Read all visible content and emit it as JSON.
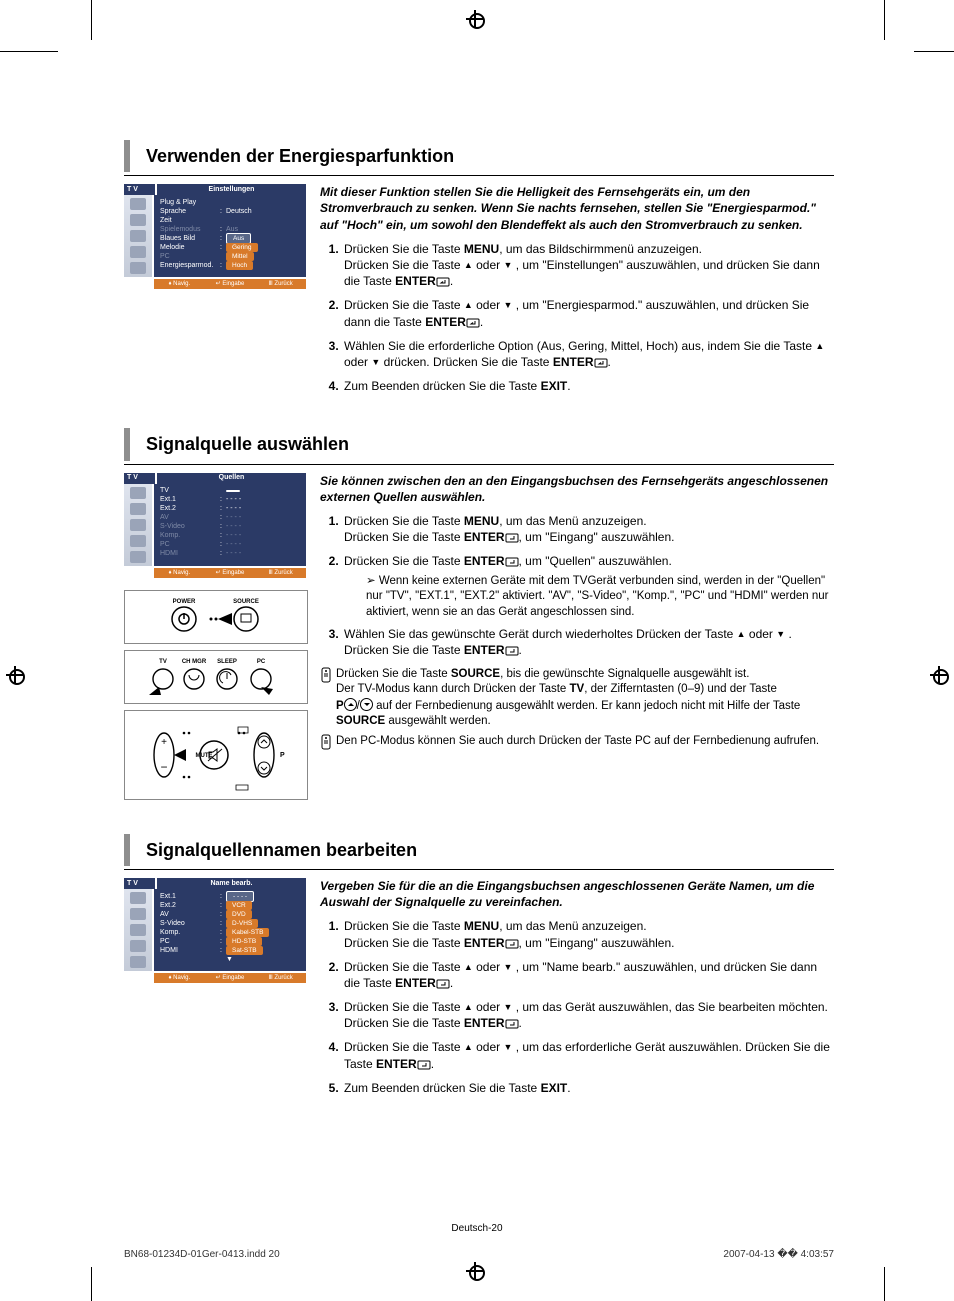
{
  "colors": {
    "accent_bar": "#8e8e8e",
    "osd_header": "#2b3a66",
    "osd_orange": "#d87a2a",
    "osd_icon_bg": "#9aa4b8",
    "osd_dim": "#7f8aa6"
  },
  "section1": {
    "title": "Verwenden der Energiesparfunktion",
    "intro": "Mit dieser Funktion stellen Sie die Helligkeit des Fernsehgeräts ein, um den Stromverbrauch zu senken. Wenn Sie nachts fernsehen, stellen Sie \"Energiesparmod.\" auf \"Hoch\" ein, um sowohl den Blendeffekt als auch den Stromverbrauch zu senken.",
    "steps": {
      "s1a": "Drücken Sie die Taste ",
      "s1b": ", um das Bildschirmmenü anzuzeigen.",
      "s1c": "Drücken Sie die Taste ",
      "s1d": " oder ",
      "s1e": " , um \"Einstellungen\" auszuwählen, und drücken Sie dann die Taste ",
      "s1f": ".",
      "s2a": "Drücken Sie die Taste ",
      "s2b": " oder ",
      "s2c": " , um \"Energiesparmod.\" auszuwählen, und drücken Sie dann die Taste ",
      "s2d": ".",
      "s3a": "Wählen Sie die erforderliche Option (Aus, Gering, Mittel, Hoch) aus, indem Sie die Taste ",
      "s3b": " oder ",
      "s3c": "  drücken. Drücken Sie die Taste ",
      "s3d": ".",
      "s4a": "Zum Beenden drücken Sie die Taste ",
      "s4b": "."
    },
    "keys": {
      "menu": "MENU",
      "enter": "ENTER",
      "exit": "EXIT"
    },
    "osd": {
      "tv": "T V",
      "header": "Einstellungen",
      "rows": [
        {
          "label": "Plug & Play",
          "val": ""
        },
        {
          "label": "Sprache",
          "val": "Deutsch",
          "colon": ":"
        },
        {
          "label": "Zeit",
          "val": ""
        },
        {
          "label": "Spielemodus",
          "val": "Aus",
          "colon": ":",
          "dim": true
        },
        {
          "label": "Blaues Bild",
          "val": "Aus",
          "colon": ":",
          "pill": "sel"
        },
        {
          "label": "Melodie",
          "val": "Gering",
          "colon": ":",
          "pill": true
        },
        {
          "label": "PC",
          "val": "Mittel",
          "pill": true,
          "dim": true
        },
        {
          "label": "Energiesparmod.",
          "val": "Hoch",
          "colon": ":",
          "pill": true
        }
      ],
      "footer": {
        "nav": "Navig.",
        "enter": "Eingabe",
        "back": "Zurück"
      }
    }
  },
  "section2": {
    "title": "Signalquelle auswählen",
    "intro": "Sie können zwischen den an den Eingangsbuchsen des Fernsehgeräts angeschlossenen externen Quellen auswählen.",
    "steps": {
      "s1a": "Drücken Sie die Taste ",
      "s1b": ", um das Menü anzuzeigen.",
      "s1c": "Drücken Sie die Taste ",
      "s1d": ", um \"Eingang\" auszuwählen.",
      "s2a": "Drücken Sie die Taste ",
      "s2b": ", um \"Quellen\" auszuwählen.",
      "sub": "Wenn keine externen Geräte mit dem TVGerät verbunden sind, werden in der \"Quellen\" nur \"TV\", \"EXT.1\", \"EXT.2\" aktiviert. \"AV\", \"S-Video\", \"Komp.\", \"PC\" und \"HDMI\" werden nur aktiviert, wenn sie an das Gerät angeschlossen sind.",
      "s3a": "Wählen Sie das gewünschte Gerät durch wiederholtes Drücken der Taste ",
      "s3b": " oder ",
      "s3c": " . Drücken Sie die Taste ",
      "s3d": "."
    },
    "keys": {
      "menu": "MENU",
      "enter": "ENTER",
      "source": "SOURCE",
      "tv": "TV",
      "p": "P"
    },
    "note1a": "Drücken Sie die Taste ",
    "note1b": ", bis die gewünschte Signalquelle ausgewählt ist.",
    "note1c": "Der TV-Modus kann durch Drücken der Taste ",
    "note1d": ", der Zifferntasten (0–9) und der Taste ",
    "note1e": " auf der Fernbedienung ausgewählt werden. Er kann jedoch nicht mit Hilfe der Taste ",
    "note1f": " ausgewählt werden.",
    "note2": "Den PC-Modus können Sie auch durch Drücken der Taste PC auf der Fernbedienung aufrufen.",
    "osd": {
      "tv": "T V",
      "header": "Quellen",
      "rows": [
        {
          "label": "TV",
          "val": "",
          "pill": "sel"
        },
        {
          "label": "Ext.1",
          "val": "- - - -",
          "colon": ":"
        },
        {
          "label": "Ext.2",
          "val": "- - - -",
          "colon": ":"
        },
        {
          "label": "AV",
          "val": "- - - -",
          "colon": ":",
          "dim": true
        },
        {
          "label": "S-Video",
          "val": "- - - -",
          "colon": ":",
          "dim": true
        },
        {
          "label": "Komp.",
          "val": "- - - -",
          "colon": ":",
          "dim": true
        },
        {
          "label": "PC",
          "val": "- - - -",
          "colon": ":",
          "dim": true
        },
        {
          "label": "HDMI",
          "val": "- - - -",
          "colon": ":",
          "dim": true
        }
      ],
      "footer": {
        "nav": "Navig.",
        "enter": "Eingabe",
        "back": "Zurück"
      }
    },
    "remote": {
      "labels": {
        "power": "POWER",
        "source": "SOURCE",
        "tv": "TV",
        "chmgr": "CH MGR",
        "sleep": "SLEEP",
        "pc": "PC",
        "mute": "MUTE",
        "p": "P"
      }
    }
  },
  "section3": {
    "title": "Signalquellennamen bearbeiten",
    "intro": "Vergeben Sie für die an die Eingangsbuchsen angeschlossenen Geräte Namen, um die Auswahl der Signalquelle zu vereinfachen.",
    "steps": {
      "s1a": "Drücken Sie die Taste ",
      "s1b": ", um das Menü anzuzeigen.",
      "s1c": "Drücken Sie die Taste ",
      "s1d": ", um \"Eingang\" auszuwählen.",
      "s2a": "Drücken Sie die Taste ",
      "s2b": " oder ",
      "s2c": " , um \"Name bearb.\" auszuwählen, und drücken Sie dann die Taste ",
      "s2d": ".",
      "s3a": "Drücken Sie die Taste ",
      "s3b": " oder ",
      "s3c": " , um das Gerät auszuwählen, das Sie bearbeiten möchten. Drücken Sie die Taste ",
      "s3d": ".",
      "s4a": "Drücken Sie die Taste ",
      "s4b": " oder ",
      "s4c": " , um das erforderliche Gerät auszuwählen. Drücken Sie die Taste ",
      "s4d": ".",
      "s5a": "Zum Beenden drücken Sie die Taste ",
      "s5b": "."
    },
    "keys": {
      "menu": "MENU",
      "enter": "ENTER",
      "exit": "EXIT"
    },
    "osd": {
      "tv": "T V",
      "header": "Name bearb.",
      "rows": [
        {
          "label": "Ext.1",
          "val": "- - - -",
          "colon": ":",
          "pill": "sel"
        },
        {
          "label": "Ext.2",
          "val": "VCR",
          "colon": ":",
          "pill": true
        },
        {
          "label": "AV",
          "val": "DVD",
          "colon": ":",
          "pill": true
        },
        {
          "label": "S-Video",
          "val": "D-VHS",
          "colon": ":",
          "pill": true
        },
        {
          "label": "Komp.",
          "val": "Kabel-STB",
          "colon": ":",
          "pill": true
        },
        {
          "label": "PC",
          "val": "HD-STB",
          "colon": ":",
          "pill": true
        },
        {
          "label": "HDMI",
          "val": "Sat-STB",
          "colon": ":",
          "pill": true
        },
        {
          "label": "",
          "val": "",
          "arrow": true
        }
      ],
      "footer": {
        "nav": "Navig.",
        "enter": "Eingabe",
        "back": "Zurück"
      }
    }
  },
  "pagenum": "Deutsch-20",
  "footer": {
    "file": "BN68-01234D-01Ger-0413.indd   20",
    "date": "2007-04-13   �� 4:03:57"
  }
}
